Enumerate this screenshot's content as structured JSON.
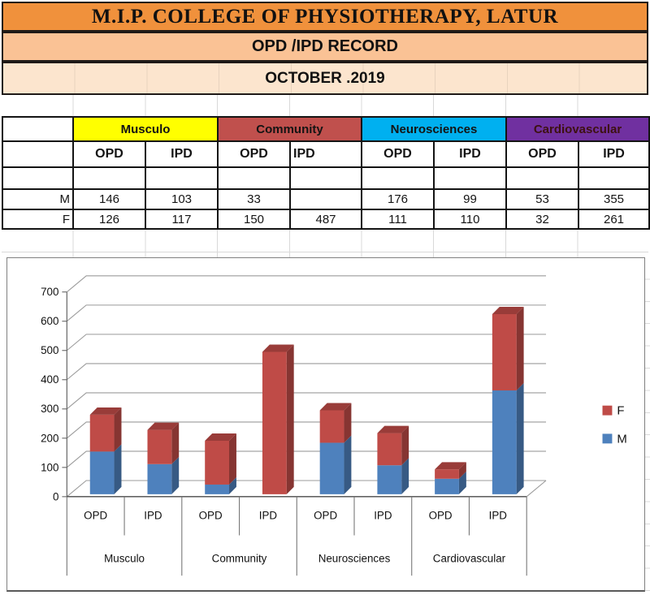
{
  "banners": {
    "title": "M.I.P. COLLEGE OF PHYSIOTHERAPY, LATUR",
    "subtitle": "OPD /IPD RECORD",
    "period": "OCTOBER .2019"
  },
  "table": {
    "groups": [
      {
        "label": "Musculo",
        "bg": "#FFFF00",
        "fg": "#141414"
      },
      {
        "label": "Community",
        "bg": "#C0504D",
        "fg": "#141414"
      },
      {
        "label": "Neurosciences",
        "bg": "#00B0F0",
        "fg": "#141414"
      },
      {
        "label": "Cardiovascular",
        "bg": "#7030A0",
        "fg": "#3D1111"
      }
    ],
    "sub_headers": [
      "OPD",
      "IPD",
      "OPD",
      "IPD",
      "OPD",
      "IPD",
      "OPD",
      "IPD"
    ],
    "sub_header_align": [
      "center",
      "center",
      "center",
      "left",
      "center",
      "center",
      "center",
      "center"
    ],
    "row_labels": [
      "M",
      "F"
    ],
    "rows": [
      [
        "146",
        "103",
        "33",
        "",
        "176",
        "99",
        "53",
        "355"
      ],
      [
        "126",
        "117",
        "150",
        "487",
        "111",
        "110",
        "32",
        "261"
      ]
    ]
  },
  "chart_data": {
    "type": "bar",
    "variant": "3d-stacked-column",
    "title": "",
    "categories": [
      "Musculo",
      "Community",
      "Neurosciences",
      "Cardiovascular"
    ],
    "sub_categories": [
      "OPD",
      "IPD"
    ],
    "series": [
      {
        "name": "M",
        "color": "#4E81BD",
        "values": [
          146,
          103,
          33,
          null,
          176,
          99,
          53,
          355
        ]
      },
      {
        "name": "F",
        "color": "#BF4B47",
        "values": [
          126,
          117,
          150,
          487,
          111,
          110,
          32,
          261
        ]
      }
    ],
    "y_ticks": [
      0,
      100,
      200,
      300,
      400,
      500,
      600,
      700
    ],
    "ylim": [
      0,
      700
    ],
    "grid": true,
    "legend": {
      "position": "right",
      "items": [
        "F",
        "M"
      ]
    }
  }
}
